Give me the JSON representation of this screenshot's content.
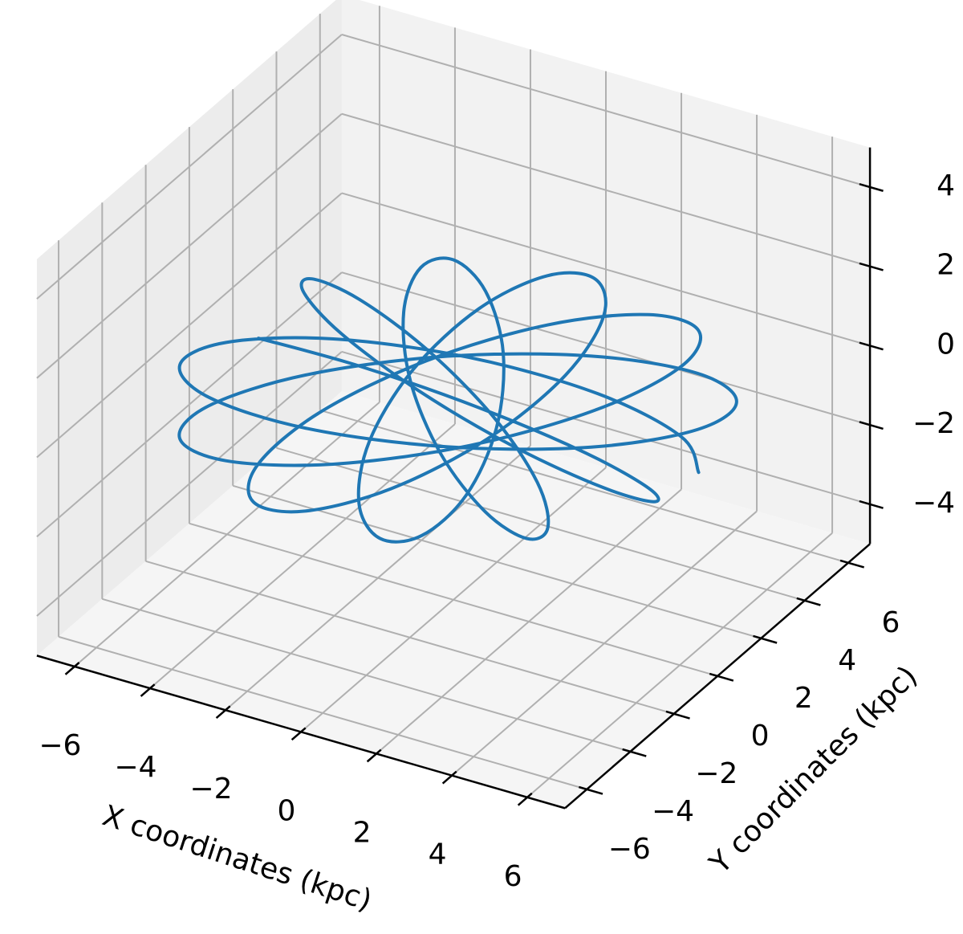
{
  "chart_data": {
    "type": "line3d",
    "xlabel": "X coordinates (kpc)",
    "ylabel": "Y coordinates (kpc)",
    "color": "#1f77b4",
    "grid": true,
    "xlim": [
      -7,
      7
    ],
    "ylim": [
      -7,
      7
    ],
    "zlim": [
      -5,
      5
    ],
    "xticks": [
      {
        "value": -6,
        "label": "−6"
      },
      {
        "value": -4,
        "label": "−4"
      },
      {
        "value": -2,
        "label": "−2"
      },
      0,
      2,
      4,
      6
    ],
    "yticks": [
      {
        "value": -6,
        "label": "−6"
      },
      {
        "value": -4,
        "label": "−4"
      },
      {
        "value": -2,
        "label": "−2"
      },
      0,
      2,
      4,
      6
    ],
    "zticks": [
      {
        "value": -4,
        "label": "−4"
      },
      {
        "value": -2,
        "label": "−2"
      },
      0,
      2,
      4
    ],
    "x": [
      6.5,
      5.6,
      3.16,
      -0.13,
      -3.35,
      -5.6,
      -6.28,
      -5.22,
      -2.76,
      0.38,
      3.31,
      5.22,
      5.63,
      4.48,
      2.17,
      -0.61,
      -3.05,
      -4.49,
      -4.6,
      -3.44,
      -1.43,
      0.79,
      2.57,
      3.45,
      3.25,
      2.16,
      0.59,
      -0.92,
      -1.93,
      -2.17,
      -1.68,
      -0.73,
      0.29,
      0.99,
      1.15,
      0.75,
      0,
      -0.75,
      -1.15,
      -0.99,
      -0.29,
      0.73,
      1.68,
      2.17,
      1.93,
      0.92,
      -0.59,
      -2.16,
      -3.25,
      -3.45,
      -2.57,
      -0.79,
      1.43,
      3.44,
      4.6,
      4.49,
      3.05,
      0.61,
      -2.17,
      -4.48,
      -5.63,
      -5.22,
      -3.31,
      -0.38,
      2.76,
      5.22,
      6.28,
      5.6,
      3.35,
      0.13,
      -3.16,
      -5.6
    ],
    "y": [
      0,
      0.75,
      1.15,
      0.99,
      0.29,
      -0.73,
      -1.68,
      -2.17,
      -1.93,
      -0.92,
      0.59,
      2.16,
      3.25,
      3.45,
      2.57,
      0.79,
      -1.43,
      -3.44,
      -4.6,
      -4.49,
      -3.05,
      -0.61,
      2.17,
      4.48,
      5.63,
      5.22,
      3.31,
      0.38,
      -2.76,
      -5.22,
      -6.28,
      -5.6,
      -3.35,
      -0.13,
      3.16,
      5.6,
      6.5,
      5.6,
      3.16,
      -0.13,
      -3.35,
      -5.6,
      -6.28,
      -5.22,
      -2.76,
      0.38,
      3.31,
      5.22,
      5.63,
      4.48,
      2.17,
      -0.61,
      -3.05,
      -4.49,
      -4.6,
      -3.44,
      -1.43,
      0.79,
      2.57,
      3.45,
      3.25,
      2.16,
      0.59,
      -0.92,
      -1.93,
      -2.17,
      -1.68,
      -0.73,
      0.29,
      0.99,
      1.15,
      0.75
    ],
    "z": [
      0,
      0.3,
      0.52,
      0.6,
      0.52,
      0.3,
      0,
      -0.3,
      -0.52,
      -0.6,
      -0.52,
      -0.3,
      0,
      0.3,
      0.52,
      0.6,
      0.52,
      0.3,
      0,
      -0.3,
      -0.52,
      -0.6,
      -0.52,
      -0.3,
      0,
      0.3,
      0.52,
      0.6,
      0.52,
      0.3,
      0,
      -0.3,
      -0.52,
      -0.6,
      -0.52,
      -0.3,
      0,
      0.3,
      0.52,
      0.6,
      0.52,
      0.3,
      0,
      -0.3,
      -0.52,
      -0.6,
      -0.52,
      -0.3,
      0,
      0.3,
      0.52,
      0.6,
      0.52,
      0.3,
      0,
      -0.3,
      -0.52,
      -0.6,
      -0.52,
      -0.3,
      0,
      0.3,
      0.52,
      0.6,
      0.52,
      0.3,
      0,
      -0.3,
      -0.52,
      -0.6,
      -0.52,
      -0.3
    ]
  }
}
